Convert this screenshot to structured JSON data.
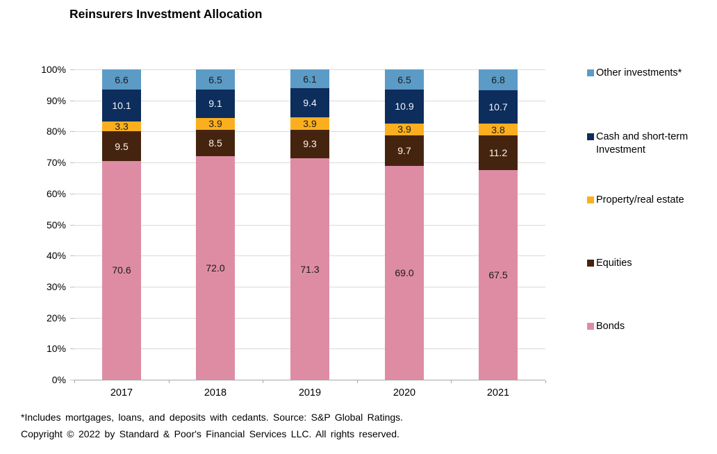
{
  "title": "Reinsurers Investment Allocation",
  "footnote": {
    "line1": "*Includes mortgages, loans, and deposits with cedants. Source: S&P Global Ratings.",
    "line2": "Copyright © 2022 by Standard & Poor's Financial Services LLC. All rights reserved."
  },
  "chart_data": {
    "type": "bar",
    "stacked": true,
    "title": "Reinsurers Investment Allocation",
    "categories": [
      "2017",
      "2018",
      "2019",
      "2020",
      "2021"
    ],
    "series": [
      {
        "name": "Bonds",
        "color": "#DE8CA4",
        "label_color": "#1a1a1a",
        "values": [
          70.6,
          72.0,
          71.3,
          69.0,
          67.5
        ]
      },
      {
        "name": "Equities",
        "color": "#45240F",
        "label_color": "#FDF4EC",
        "values": [
          9.5,
          8.5,
          9.3,
          9.7,
          11.2
        ]
      },
      {
        "name": "Property/real estate",
        "color": "#FBAF1F",
        "label_color": "#1a1a1a",
        "values": [
          3.3,
          3.9,
          3.9,
          3.9,
          3.8
        ]
      },
      {
        "name": "Cash and short-term Investment",
        "color": "#0D2D5C",
        "label_color": "#F2F6FB",
        "values": [
          10.1,
          9.1,
          9.4,
          10.9,
          10.7
        ]
      },
      {
        "name": "Other investments*",
        "color": "#5B9BC6",
        "label_color": "#1a1a1a",
        "values": [
          6.6,
          6.5,
          6.1,
          6.5,
          6.8
        ]
      }
    ],
    "legend_order": [
      "Other investments*",
      "Cash and short-term Investment",
      "Property/real estate",
      "Equities",
      "Bonds"
    ],
    "legend_position": "right",
    "y_ticks": [
      "0%",
      "10%",
      "20%",
      "30%",
      "40%",
      "50%",
      "60%",
      "70%",
      "80%",
      "90%",
      "100%"
    ],
    "ylim": [
      0,
      100
    ],
    "grid": true,
    "grid_color": "#D9D9D9",
    "axis_color": "#A6A6A6"
  }
}
